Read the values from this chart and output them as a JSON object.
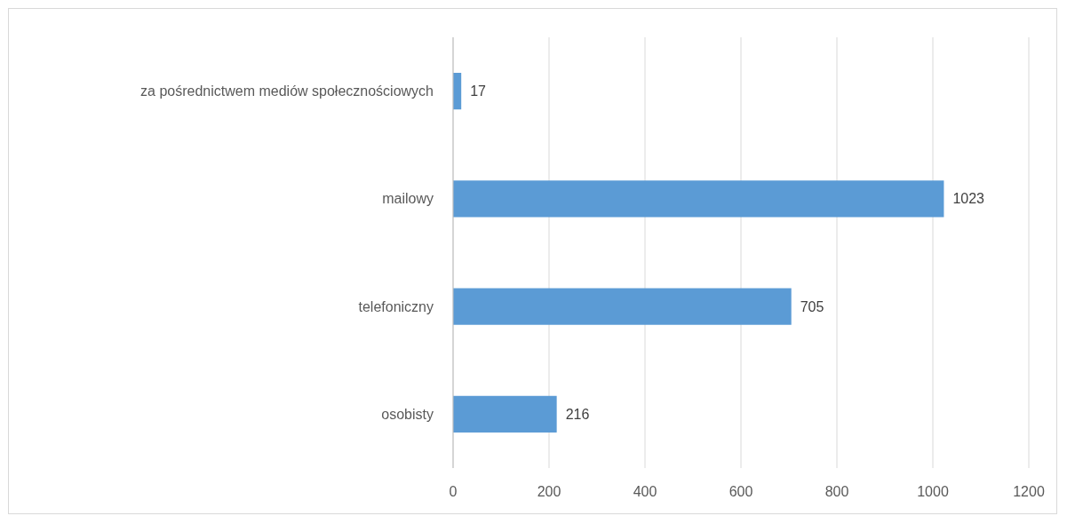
{
  "chart_data": {
    "type": "bar",
    "orientation": "horizontal",
    "categories": [
      "za pośrednictwem mediów społecznościowych",
      "mailowy",
      "telefoniczny",
      "osobisty"
    ],
    "values": [
      17,
      1023,
      705,
      216
    ],
    "color": "#5b9bd5",
    "xlim": [
      0,
      1200
    ],
    "xticks": [
      0,
      200,
      400,
      600,
      800,
      1000,
      1200
    ],
    "grid": "x",
    "data_labels": true
  }
}
